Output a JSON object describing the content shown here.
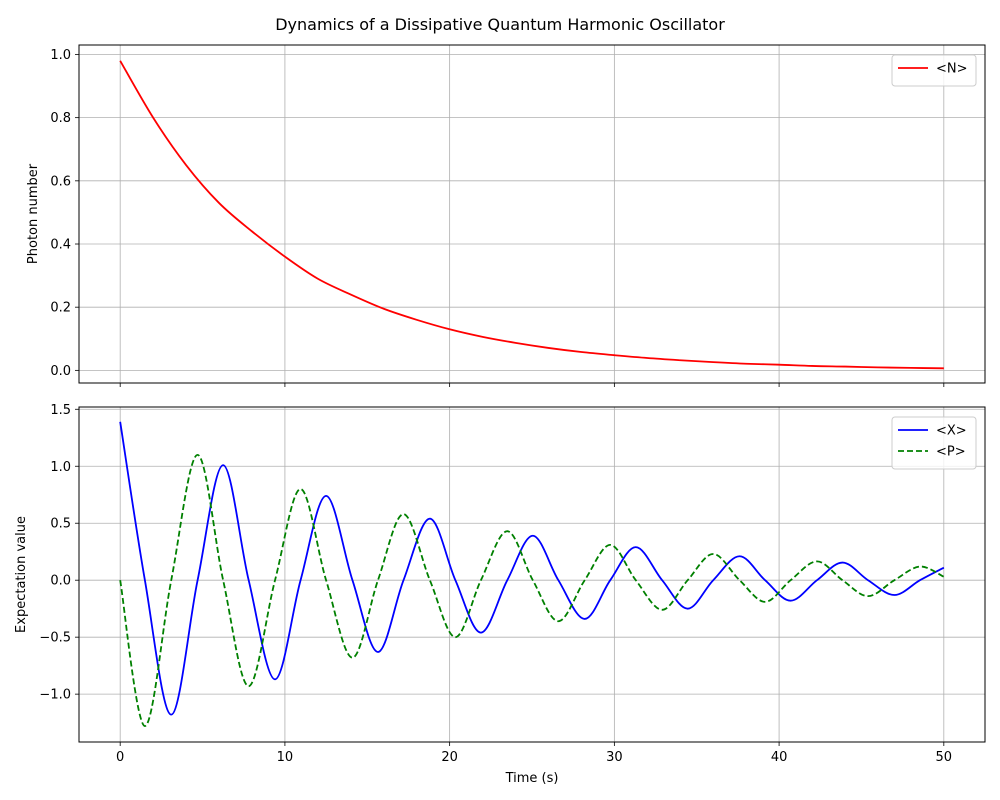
{
  "figure": {
    "title": "Dynamics of a Dissipative Quantum Harmonic Oscillator"
  },
  "chart_data": [
    {
      "type": "line",
      "title": "",
      "xlabel": "",
      "ylabel": "Photon number",
      "xlim": [
        -2.5,
        52.5
      ],
      "ylim": [
        -0.04,
        1.03
      ],
      "xticks": [
        0,
        10,
        20,
        30,
        40,
        50
      ],
      "xtick_labels_shown": false,
      "yticks": [
        0.0,
        0.2,
        0.4,
        0.6,
        0.8,
        1.0
      ],
      "ytick_labels": [
        "0.0",
        "0.2",
        "0.4",
        "0.6",
        "0.8",
        "1.0"
      ],
      "grid": true,
      "legend": "top-right",
      "series": [
        {
          "name": "<N>",
          "color": "#ff0000",
          "style": "solid",
          "x": [
            0,
            2,
            4,
            6,
            8,
            10,
            12,
            14,
            16,
            18,
            20,
            22,
            24,
            26,
            28,
            30,
            32,
            34,
            36,
            38,
            40,
            42,
            44,
            46,
            48,
            50
          ],
          "y": [
            0.98,
            0.8,
            0.65,
            0.53,
            0.44,
            0.36,
            0.29,
            0.24,
            0.195,
            0.16,
            0.13,
            0.106,
            0.087,
            0.071,
            0.058,
            0.048,
            0.039,
            0.032,
            0.026,
            0.021,
            0.018,
            0.014,
            0.012,
            0.0095,
            0.0078,
            0.0065
          ]
        }
      ]
    },
    {
      "type": "line",
      "title": "",
      "xlabel": "Time (s)",
      "ylabel": "Expectation value",
      "xlim": [
        -2.5,
        52.5
      ],
      "ylim": [
        -1.42,
        1.52
      ],
      "xticks": [
        0,
        10,
        20,
        30,
        40,
        50
      ],
      "xtick_labels": [
        "0",
        "10",
        "20",
        "30",
        "40",
        "50"
      ],
      "yticks": [
        -1.0,
        -0.5,
        0.0,
        0.5,
        1.0,
        1.5
      ],
      "ytick_labels": [
        "−1.0",
        "−0.5",
        "0.0",
        "0.5",
        "1.0",
        "1.5"
      ],
      "grid": true,
      "legend": "top-right",
      "series": [
        {
          "name": "<X>",
          "color": "#0000ff",
          "style": "solid",
          "x": [
            0,
            1.5,
            3.1,
            4.7,
            6.25,
            7.8,
            9.4,
            10.95,
            12.5,
            14.1,
            15.65,
            17.2,
            18.8,
            20.35,
            21.9,
            23.5,
            25.05,
            26.6,
            28.2,
            29.75,
            31.3,
            32.9,
            34.45,
            36.0,
            37.6,
            39.15,
            40.7,
            42.3,
            43.85,
            45.4,
            47.0,
            48.55,
            50.0
          ],
          "y": [
            1.39,
            0.0,
            -1.18,
            0.0,
            1.01,
            0.0,
            -0.87,
            0.0,
            0.74,
            0.0,
            -0.63,
            0.0,
            0.54,
            0.0,
            -0.46,
            0.0,
            0.39,
            0.0,
            -0.34,
            0.0,
            0.29,
            0.0,
            -0.25,
            0.0,
            0.21,
            0.0,
            -0.18,
            0.0,
            0.155,
            0.0,
            -0.13,
            0.0,
            0.11
          ]
        },
        {
          "name": "<P>",
          "color": "#008000",
          "style": "dashed",
          "x": [
            0,
            1.5,
            3.1,
            4.7,
            6.25,
            7.8,
            9.4,
            10.95,
            12.5,
            14.1,
            15.65,
            17.2,
            18.8,
            20.35,
            21.9,
            23.5,
            25.05,
            26.6,
            28.2,
            29.75,
            31.3,
            32.9,
            34.45,
            36.0,
            37.6,
            39.15,
            40.7,
            42.3,
            43.85,
            45.4,
            47.0,
            48.55,
            50.0
          ],
          "y": [
            0.0,
            -1.28,
            0.0,
            1.1,
            0.0,
            -0.93,
            0.0,
            0.8,
            0.0,
            -0.68,
            0.0,
            0.58,
            0.0,
            -0.5,
            0.0,
            0.43,
            0.0,
            -0.36,
            0.0,
            0.31,
            0.0,
            -0.26,
            0.0,
            0.23,
            0.0,
            -0.19,
            0.0,
            0.165,
            0.0,
            -0.14,
            0.0,
            0.12,
            0.03
          ]
        }
      ]
    }
  ]
}
